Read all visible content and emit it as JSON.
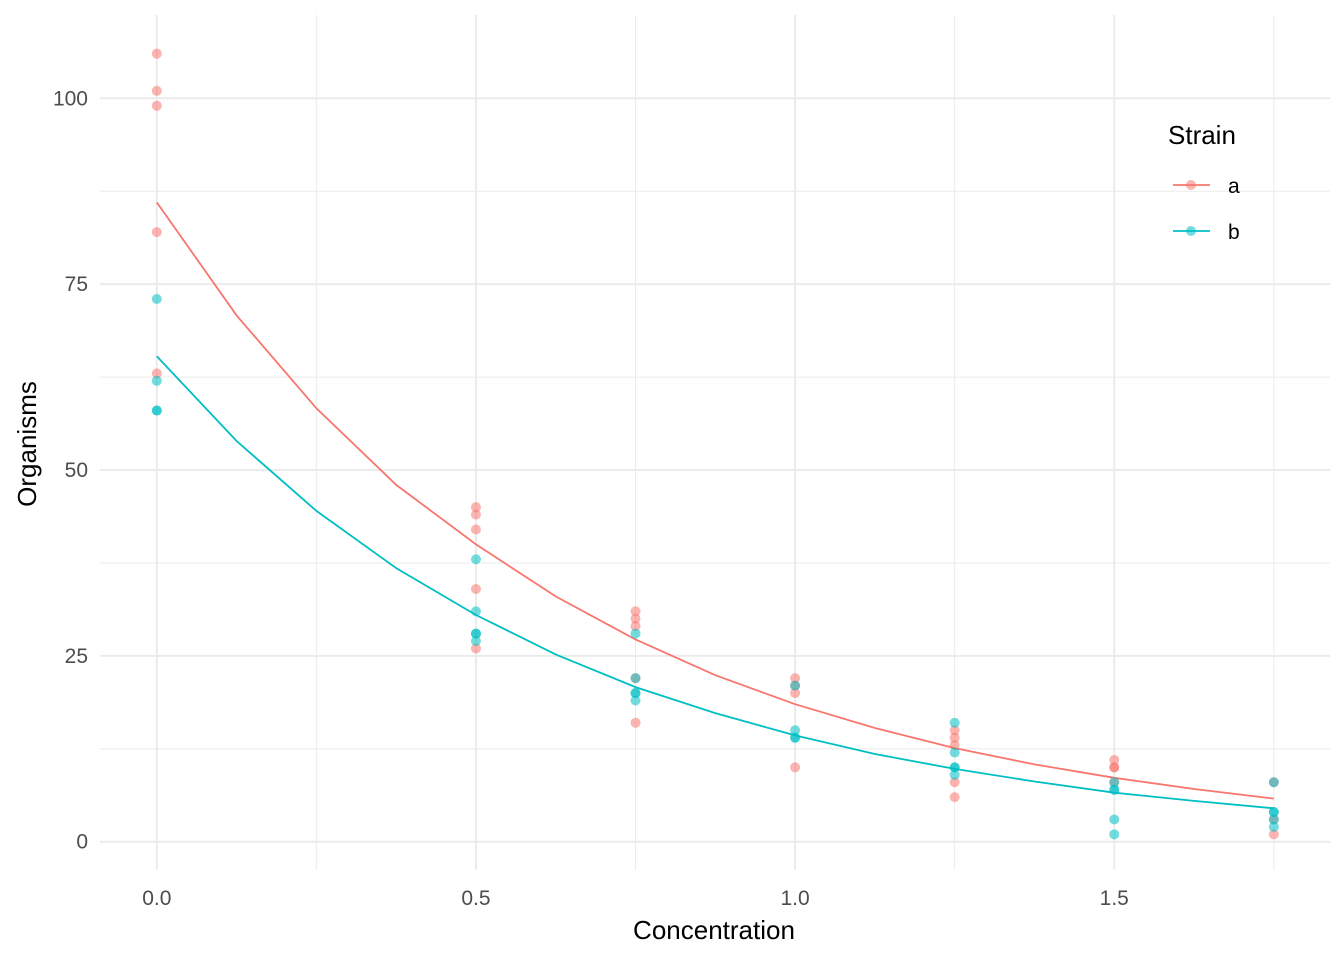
{
  "chart_data": {
    "type": "scatter",
    "title": "",
    "xlabel": "Concentration",
    "ylabel": "Organisms",
    "xlim": [
      -0.089,
      1.838
    ],
    "ylim": [
      -3.8,
      111.2
    ],
    "x_ticks": [
      0.0,
      0.5,
      1.0,
      1.5
    ],
    "x_tick_labels": [
      "0.0",
      "0.5",
      "1.0",
      "1.5"
    ],
    "y_ticks": [
      0,
      25,
      50,
      75,
      100
    ],
    "y_tick_labels": [
      "0",
      "25",
      "50",
      "75",
      "100"
    ],
    "grid": true,
    "legend": {
      "title": "Strain",
      "placement": "right",
      "entries": [
        "a",
        "b"
      ]
    },
    "series": [
      {
        "name": "a",
        "color": "#F8766D",
        "points": [
          [
            0,
            106
          ],
          [
            0,
            101
          ],
          [
            0,
            99
          ],
          [
            0,
            82
          ],
          [
            0,
            63
          ],
          [
            0.5,
            45
          ],
          [
            0.5,
            44
          ],
          [
            0.5,
            42
          ],
          [
            0.5,
            34
          ],
          [
            0.5,
            26
          ],
          [
            0.75,
            31
          ],
          [
            0.75,
            30
          ],
          [
            0.75,
            29
          ],
          [
            0.75,
            22
          ],
          [
            0.75,
            16
          ],
          [
            1.0,
            22
          ],
          [
            1.0,
            21
          ],
          [
            1.0,
            20
          ],
          [
            1.0,
            10
          ],
          [
            1.25,
            15
          ],
          [
            1.25,
            14
          ],
          [
            1.25,
            13
          ],
          [
            1.25,
            8
          ],
          [
            1.25,
            6
          ],
          [
            1.5,
            11
          ],
          [
            1.5,
            10
          ],
          [
            1.5,
            10
          ],
          [
            1.5,
            8
          ],
          [
            1.75,
            8
          ],
          [
            1.75,
            3
          ],
          [
            1.75,
            1
          ]
        ],
        "fit": {
          "x": [
            0,
            0.125,
            0.25,
            0.375,
            0.5,
            0.625,
            0.75,
            0.875,
            1.0,
            1.125,
            1.25,
            1.375,
            1.5,
            1.625,
            1.75
          ],
          "y": [
            86.0,
            70.8,
            58.3,
            48.0,
            40.0,
            33.0,
            27.2,
            22.4,
            18.5,
            15.3,
            12.6,
            10.4,
            8.6,
            7.1,
            5.8
          ]
        }
      },
      {
        "name": "b",
        "color": "#00BFC4",
        "points": [
          [
            0,
            73
          ],
          [
            0,
            62
          ],
          [
            0,
            58
          ],
          [
            0,
            58
          ],
          [
            0.5,
            38
          ],
          [
            0.5,
            31
          ],
          [
            0.5,
            28
          ],
          [
            0.5,
            28
          ],
          [
            0.5,
            27
          ],
          [
            0.75,
            28
          ],
          [
            0.75,
            22
          ],
          [
            0.75,
            20
          ],
          [
            0.75,
            20
          ],
          [
            0.75,
            19
          ],
          [
            1.0,
            21
          ],
          [
            1.0,
            15
          ],
          [
            1.0,
            14
          ],
          [
            1.0,
            14
          ],
          [
            1.25,
            16
          ],
          [
            1.25,
            12
          ],
          [
            1.25,
            10
          ],
          [
            1.25,
            10
          ],
          [
            1.25,
            9
          ],
          [
            1.5,
            8
          ],
          [
            1.5,
            7
          ],
          [
            1.5,
            7
          ],
          [
            1.5,
            3
          ],
          [
            1.5,
            1
          ],
          [
            1.75,
            8
          ],
          [
            1.75,
            4
          ],
          [
            1.75,
            4
          ],
          [
            1.75,
            3
          ],
          [
            1.75,
            2
          ]
        ],
        "fit": {
          "x": [
            0,
            0.125,
            0.25,
            0.375,
            0.5,
            0.625,
            0.75,
            0.875,
            1.0,
            1.125,
            1.25,
            1.375,
            1.5,
            1.625,
            1.75
          ],
          "y": [
            65.3,
            53.9,
            44.5,
            36.8,
            30.5,
            25.2,
            20.8,
            17.3,
            14.3,
            11.8,
            9.8,
            8.1,
            6.6,
            5.5,
            4.5
          ]
        }
      }
    ]
  }
}
